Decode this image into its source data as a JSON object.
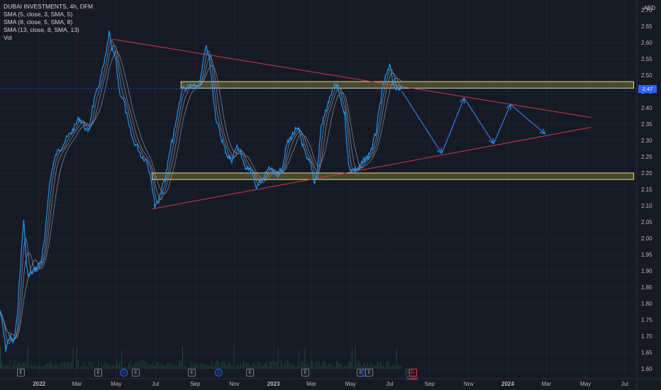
{
  "header": {
    "title": "DUBAI INVESTMENTS, 4h, DFM",
    "indicators": [
      "SMA (5, close, 3, SMA, 5)",
      "SMA (8, close, 5, SMA, 8)",
      "SMA (13, close, 8, SMA, 13)",
      "Vol"
    ],
    "currency": "AED"
  },
  "last_price": "2.47",
  "events": [
    {
      "kind": "E"
    },
    {
      "kind": "E"
    },
    {
      "kind": "D"
    },
    {
      "kind": "E"
    },
    {
      "kind": "E"
    },
    {
      "kind": "D"
    },
    {
      "kind": "E"
    },
    {
      "kind": "E"
    },
    {
      "kind": "E"
    },
    {
      "kind": "D"
    },
    {
      "kind": "E"
    },
    {
      "kind": "E-faded"
    },
    {
      "kind": "E-red"
    }
  ],
  "chart_data": {
    "type": "line",
    "title": "DUBAI INVESTMENTS, 4h, DFM",
    "colors": {
      "price": "#2196f3",
      "sma": "#8e9bb0",
      "trendline": "#d0394b",
      "zone_fill": "#5a5a32",
      "zone_border": "#e8dc86",
      "projection": "#2f7fe6",
      "volume": "#1f5f3f"
    },
    "y_axis": {
      "ylim": [
        1.57,
        2.73
      ],
      "ticks": [
        "1.60",
        "1.65",
        "1.70",
        "1.75",
        "1.80",
        "1.85",
        "1.90",
        "1.95",
        "2.00",
        "2.05",
        "2.10",
        "2.15",
        "2.20",
        "2.25",
        "2.30",
        "2.35",
        "2.40",
        "2.45",
        "2.50",
        "2.55",
        "2.60",
        "2.65",
        "2.70"
      ]
    },
    "x_axis": {
      "xlim": [
        "2021-11-01",
        "2024-07-20"
      ],
      "ticks": [
        {
          "label": "2022",
          "date": "2022-01-01"
        },
        {
          "label": "Mar",
          "date": "2022-03-01"
        },
        {
          "label": "May",
          "date": "2022-05-01"
        },
        {
          "label": "Jul",
          "date": "2022-07-01"
        },
        {
          "label": "Sep",
          "date": "2022-09-01"
        },
        {
          "label": "Nov",
          "date": "2022-11-01"
        },
        {
          "label": "2023",
          "date": "2023-01-01"
        },
        {
          "label": "Mar",
          "date": "2023-03-01"
        },
        {
          "label": "May",
          "date": "2023-05-01"
        },
        {
          "label": "Jul",
          "date": "2023-07-01"
        },
        {
          "label": "Sep",
          "date": "2023-09-01"
        },
        {
          "label": "Nov",
          "date": "2023-11-01"
        },
        {
          "label": "2024",
          "date": "2024-01-01"
        },
        {
          "label": "Mar",
          "date": "2024-03-01"
        },
        {
          "label": "May",
          "date": "2024-05-01"
        },
        {
          "label": "Jul",
          "date": "2024-07-01"
        }
      ]
    },
    "series": [
      {
        "x": [
          "2021-11-01",
          "2021-11-06",
          "2021-11-10",
          "2021-11-16",
          "2021-11-22",
          "2021-11-27",
          "2021-12-03",
          "2021-12-08",
          "2021-12-11",
          "2021-12-15",
          "2021-12-22",
          "2021-12-28",
          "2022-01-04",
          "2022-01-10",
          "2022-01-16",
          "2022-01-22",
          "2022-01-28",
          "2022-02-04",
          "2022-02-11",
          "2022-02-18",
          "2022-02-25",
          "2022-03-04",
          "2022-03-11",
          "2022-03-18",
          "2022-03-25",
          "2022-04-01",
          "2022-04-08",
          "2022-04-15",
          "2022-04-20",
          "2022-04-24",
          "2022-04-30",
          "2022-05-06",
          "2022-05-13",
          "2022-05-20",
          "2022-05-27",
          "2022-06-03",
          "2022-06-10",
          "2022-06-17",
          "2022-06-24",
          "2022-06-30",
          "2022-07-06",
          "2022-07-12",
          "2022-07-18",
          "2022-07-25",
          "2022-08-01",
          "2022-08-06",
          "2022-08-12",
          "2022-08-19",
          "2022-08-26",
          "2022-09-02",
          "2022-09-09",
          "2022-09-13",
          "2022-09-17",
          "2022-09-23",
          "2022-09-28",
          "2022-10-04",
          "2022-10-10",
          "2022-10-16",
          "2022-10-22",
          "2022-10-28",
          "2022-11-04",
          "2022-11-10",
          "2022-11-16",
          "2022-11-22",
          "2022-11-28",
          "2022-12-04",
          "2022-12-10",
          "2022-12-16",
          "2022-12-22",
          "2022-12-28",
          "2023-01-04",
          "2023-01-10",
          "2023-01-16",
          "2023-01-22",
          "2023-01-28",
          "2023-02-04",
          "2023-02-10",
          "2023-02-16",
          "2023-02-22",
          "2023-02-28",
          "2023-03-06",
          "2023-03-10",
          "2023-03-16",
          "2023-03-22",
          "2023-03-28",
          "2023-04-04",
          "2023-04-10",
          "2023-04-16",
          "2023-04-22",
          "2023-04-28",
          "2023-05-04",
          "2023-05-10",
          "2023-05-16",
          "2023-05-22",
          "2023-05-28",
          "2023-06-04",
          "2023-06-10",
          "2023-06-16",
          "2023-06-22",
          "2023-06-28",
          "2023-07-02",
          "2023-07-06",
          "2023-07-10",
          "2023-07-15",
          "2023-07-20"
        ],
        "y": [
          1.78,
          1.72,
          1.66,
          1.7,
          1.68,
          1.74,
          1.92,
          2.06,
          1.95,
          1.88,
          1.9,
          1.91,
          1.93,
          2.0,
          2.15,
          2.22,
          2.26,
          2.28,
          2.3,
          2.32,
          2.34,
          2.37,
          2.35,
          2.32,
          2.4,
          2.45,
          2.5,
          2.56,
          2.63,
          2.58,
          2.55,
          2.45,
          2.42,
          2.35,
          2.3,
          2.28,
          2.25,
          2.24,
          2.19,
          2.1,
          2.12,
          2.16,
          2.2,
          2.28,
          2.34,
          2.4,
          2.46,
          2.46,
          2.47,
          2.46,
          2.48,
          2.53,
          2.59,
          2.55,
          2.46,
          2.36,
          2.32,
          2.28,
          2.25,
          2.24,
          2.28,
          2.27,
          2.22,
          2.22,
          2.2,
          2.16,
          2.17,
          2.18,
          2.21,
          2.21,
          2.19,
          2.2,
          2.23,
          2.29,
          2.31,
          2.33,
          2.33,
          2.28,
          2.24,
          2.23,
          2.17,
          2.2,
          2.34,
          2.38,
          2.42,
          2.46,
          2.47,
          2.42,
          2.38,
          2.22,
          2.21,
          2.21,
          2.22,
          2.24,
          2.25,
          2.28,
          2.33,
          2.41,
          2.48,
          2.51,
          2.53,
          2.48,
          2.46,
          2.45,
          2.47
        ]
      },
      {
        "name": "projection",
        "x": [
          "2023-07-20",
          "2023-09-20",
          "2023-10-25",
          "2023-12-10",
          "2024-01-05",
          "2024-02-28"
        ],
        "y": [
          2.45,
          2.26,
          2.43,
          2.29,
          2.41,
          2.32
        ]
      }
    ],
    "trendlines": [
      {
        "x": [
          "2022-04-25",
          "2024-05-10"
        ],
        "y": [
          2.61,
          2.37
        ]
      },
      {
        "x": [
          "2022-06-26",
          "2024-05-10"
        ],
        "y": [
          2.09,
          2.34
        ]
      }
    ],
    "zones": [
      {
        "x": [
          "2022-08-10",
          "2024-07-15"
        ],
        "y": [
          2.46,
          2.48
        ]
      },
      {
        "x": [
          "2022-06-26",
          "2024-07-15"
        ],
        "y": [
          2.18,
          2.2
        ]
      }
    ]
  }
}
